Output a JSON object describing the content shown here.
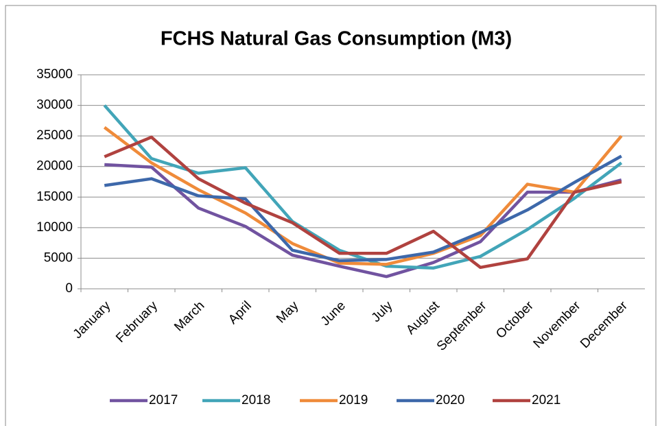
{
  "chart_data": {
    "type": "line",
    "title": "FCHS Natural Gas Consumption (M3)",
    "categories": [
      "January",
      "February",
      "March",
      "April",
      "May",
      "June",
      "July",
      "August",
      "September",
      "October",
      "November",
      "December"
    ],
    "series": [
      {
        "name": "2017",
        "color": "#7153a0",
        "values": [
          20300,
          19900,
          13200,
          10200,
          5500,
          3700,
          2000,
          4300,
          7700,
          15800,
          15800,
          17800
        ]
      },
      {
        "name": "2018",
        "color": "#42a5b8",
        "values": [
          30000,
          21300,
          18900,
          19800,
          11000,
          6300,
          3700,
          3400,
          5300,
          9700,
          14800,
          20600
        ]
      },
      {
        "name": "2019",
        "color": "#ef8b3a",
        "values": [
          26400,
          20600,
          16200,
          12400,
          7400,
          4200,
          4000,
          5800,
          8700,
          17100,
          15800,
          25000
        ]
      },
      {
        "name": "2020",
        "color": "#3d68aa",
        "values": [
          16900,
          18000,
          15200,
          14700,
          6300,
          4600,
          4800,
          6000,
          9200,
          12900,
          17400,
          21700
        ]
      },
      {
        "name": "2021",
        "color": "#b0423f",
        "values": [
          21600,
          24800,
          18000,
          14000,
          10800,
          5800,
          5800,
          9400,
          3500,
          4900,
          15800,
          17500
        ]
      }
    ],
    "ylim": [
      0,
      35000
    ],
    "yticks": [
      0,
      5000,
      10000,
      15000,
      20000,
      25000,
      30000,
      35000
    ],
    "grid": true,
    "legend": "bottom"
  }
}
